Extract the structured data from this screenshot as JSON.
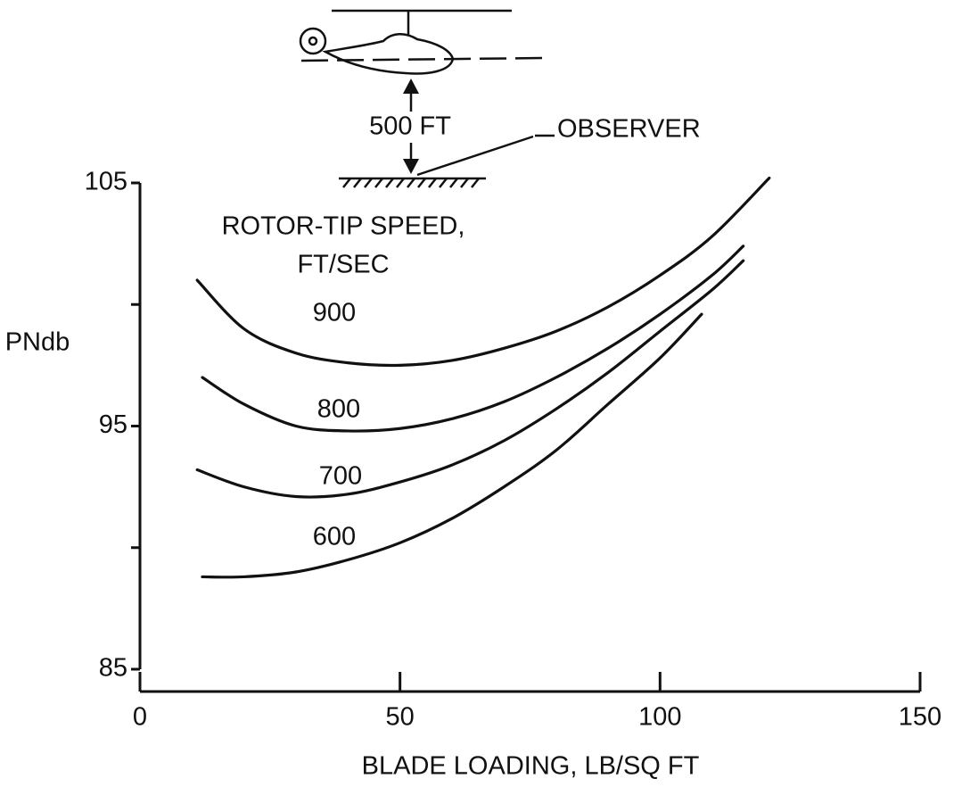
{
  "chart_data": {
    "type": "line",
    "y_label": "PNdb",
    "x_label": "BLADE LOADING, LB/SQ FT",
    "legend_title": [
      "ROTOR-TIP SPEED,",
      "FT/SEC"
    ],
    "annotations": {
      "height": "500 FT",
      "observer": "OBSERVER"
    },
    "xlim": [
      0,
      150
    ],
    "xticks": [
      0,
      50,
      100,
      150
    ],
    "ylim": [
      85,
      105
    ],
    "yticks": [
      85,
      95,
      105
    ],
    "yminor_ticks": [
      90,
      100
    ],
    "series": [
      {
        "name": "900",
        "color": "#111111",
        "x": [
          11,
          20,
          30,
          40,
          50,
          60,
          70,
          80,
          90,
          100,
          110,
          121
        ],
        "values": [
          101.0,
          99.0,
          98.0,
          97.6,
          97.5,
          97.7,
          98.2,
          98.9,
          99.9,
          101.2,
          102.8,
          105.2
        ]
      },
      {
        "name": "800",
        "color": "#111111",
        "x": [
          12,
          20,
          30,
          40,
          50,
          60,
          70,
          80,
          90,
          100,
          110,
          116
        ],
        "values": [
          97.0,
          95.9,
          95.0,
          94.8,
          94.9,
          95.3,
          96.0,
          97.0,
          98.2,
          99.6,
          101.2,
          102.4
        ]
      },
      {
        "name": "700",
        "color": "#111111",
        "x": [
          11,
          20,
          30,
          40,
          50,
          60,
          70,
          80,
          90,
          100,
          110,
          116
        ],
        "values": [
          93.2,
          92.5,
          92.1,
          92.2,
          92.7,
          93.4,
          94.4,
          95.7,
          97.2,
          98.9,
          100.6,
          101.8
        ]
      },
      {
        "name": "600",
        "color": "#111111",
        "x": [
          12,
          20,
          30,
          40,
          50,
          60,
          70,
          80,
          90,
          100,
          108
        ],
        "values": [
          88.8,
          88.8,
          89.0,
          89.5,
          90.2,
          91.2,
          92.5,
          94.0,
          95.9,
          97.8,
          99.6
        ]
      }
    ]
  }
}
